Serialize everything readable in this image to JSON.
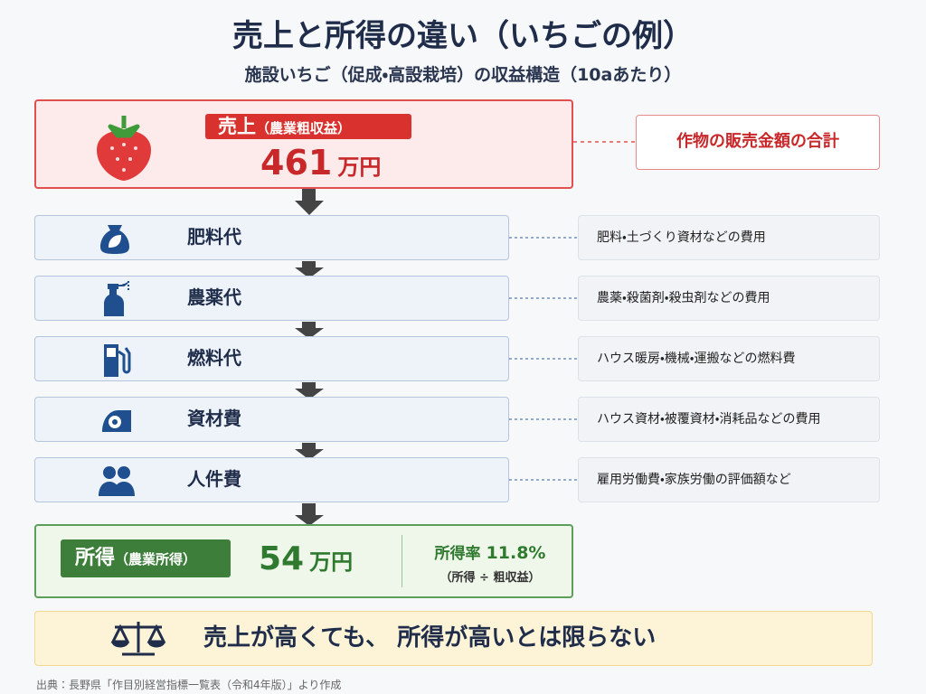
{
  "header": {
    "title": "売上と所得の違い（いちごの例）",
    "subtitle": "施設いちご（促成・高設栽培）の収益構造（10aあたり）"
  },
  "revenue": {
    "label": "売上",
    "label_note": "（農業粗収益）",
    "value": 461,
    "unit": "万円",
    "description": "作物の販売金額の合計"
  },
  "costs": [
    {
      "label": "肥料代",
      "description": "肥料・土づくり資材などの費用"
    },
    {
      "label": "農薬代",
      "description": "農薬・殺菌剤・殺虫剤などの費用"
    },
    {
      "label": "燃料代",
      "description": "ハウス暖房・機械・運搬などの燃料費"
    },
    {
      "label": "資材費",
      "description": "ハウス資材・被覆資材・消耗品などの費用"
    },
    {
      "label": "人件費",
      "description": "雇用労働費・家族労働の評価額など"
    }
  ],
  "income": {
    "label": "所得",
    "label_note": "（農業所得）",
    "value": 54,
    "unit": "万円",
    "rate_label": "所得率",
    "rate": "11.8%",
    "rate_note": "（所得 ÷ 粗収益）"
  },
  "message": "売上が高くても、 所得が高いとは限らない",
  "source": "出典：長野県「作目別経営指標一覧表（令和4年版）」より作成"
}
